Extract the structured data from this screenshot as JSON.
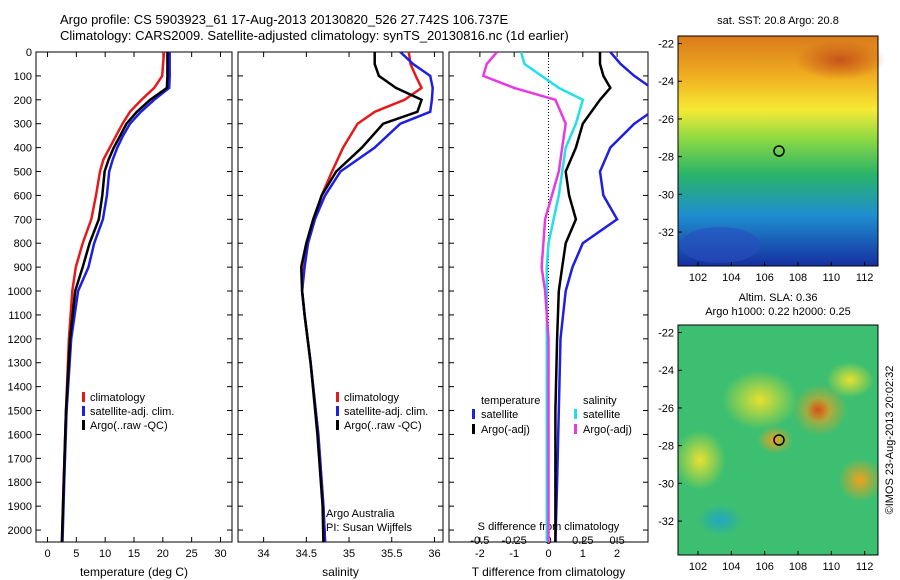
{
  "header": {
    "line1": "Argo profile: CS 5903923_61 17-Aug-2013 20130820_526 27.742S 106.737E",
    "line2": "Climatology: CARS2009. Satellite-adjusted climatology: synTS_20130816.nc (1d earlier)"
  },
  "colors": {
    "climatology": "#e41a1c",
    "satellite": "#1f1fe0",
    "argo": "#000000",
    "sat_sal": "#22e0e8",
    "argo_sal": "#e83ae0"
  },
  "depth_ticks": [
    "0",
    "100",
    "200",
    "300",
    "400",
    "500",
    "600",
    "700",
    "800",
    "900",
    "1000",
    "1100",
    "1200",
    "1300",
    "1400",
    "1500",
    "1600",
    "1700",
    "1800",
    "1900",
    "2000"
  ],
  "chart_data": [
    {
      "type": "line",
      "xlabel": "temperature (deg C)",
      "xticks": [
        "0",
        "5",
        "10",
        "15",
        "20",
        "25",
        "30"
      ],
      "xlim": [
        -2,
        32
      ],
      "ylim": [
        0,
        2050
      ],
      "legend": [
        "climatology",
        "satellite-adj. clim.",
        "Argo(..raw -QC)"
      ],
      "series": [
        {
          "name": "climatology",
          "depth": [
            0,
            100,
            150,
            200,
            250,
            300,
            350,
            400,
            450,
            500,
            600,
            700,
            800,
            900,
            1000,
            1200,
            1500,
            1800,
            2050
          ],
          "values": [
            20.2,
            19.9,
            18.5,
            16.3,
            14.3,
            13,
            11.9,
            10.8,
            9.7,
            9.1,
            8.4,
            7.6,
            6.1,
            4.9,
            4.3,
            3.7,
            3.2,
            2.8,
            2.5
          ]
        },
        {
          "name": "satellite-adj. clim.",
          "depth": [
            0,
            100,
            150,
            200,
            250,
            300,
            350,
            400,
            450,
            500,
            600,
            700,
            800,
            900,
            1000,
            1200,
            1500,
            1800,
            2050
          ],
          "values": [
            21.2,
            21.2,
            21.1,
            18.5,
            16.2,
            14.3,
            13.1,
            12.1,
            11.3,
            10.7,
            10.3,
            9.6,
            8.1,
            7.1,
            5.3,
            4.1,
            3.3,
            2.9,
            2.6
          ]
        },
        {
          "name": "Argo(..raw -QC)",
          "depth": [
            0,
            100,
            150,
            200,
            250,
            300,
            350,
            400,
            450,
            500,
            600,
            700,
            800,
            900,
            1000,
            1200,
            1500,
            1800,
            2050
          ],
          "values": [
            20.8,
            20.8,
            20.7,
            17.8,
            15.5,
            13.7,
            12.6,
            11.5,
            10.6,
            9.9,
            9.5,
            8.9,
            7.3,
            6.1,
            4.8,
            3.9,
            3.2,
            2.8,
            2.5
          ]
        }
      ]
    },
    {
      "type": "line",
      "xlabel": "salinity",
      "xticks": [
        "34",
        "34.5",
        "35",
        "35.5",
        "36"
      ],
      "xlim": [
        33.7,
        36.1
      ],
      "ylim": [
        0,
        2050
      ],
      "legend": [
        "climatology",
        "satellite-adj. clim.",
        "Argo(..raw -QC)"
      ],
      "annotation": [
        "Argo Australia",
        "PI: Susan Wijffels"
      ],
      "series": [
        {
          "name": "climatology",
          "depth": [
            0,
            50,
            100,
            150,
            200,
            250,
            300,
            400,
            500,
            600,
            700,
            800,
            900,
            1000,
            1100,
            1300,
            1600,
            1900,
            2050
          ],
          "values": [
            35.7,
            35.72,
            35.78,
            35.85,
            35.65,
            35.3,
            35.1,
            34.93,
            34.8,
            34.68,
            34.6,
            34.52,
            34.47,
            34.45,
            34.48,
            34.55,
            34.64,
            34.7,
            34.72
          ]
        },
        {
          "name": "satellite-adj. clim.",
          "depth": [
            0,
            50,
            100,
            150,
            200,
            250,
            300,
            400,
            500,
            600,
            700,
            800,
            900,
            1000,
            1100,
            1300,
            1600,
            1900,
            2050
          ],
          "values": [
            35.6,
            35.75,
            35.95,
            35.98,
            35.97,
            35.95,
            35.6,
            35.3,
            34.9,
            34.72,
            34.6,
            34.52,
            34.48,
            34.45,
            34.48,
            34.55,
            34.64,
            34.7,
            34.72
          ]
        },
        {
          "name": "Argo(..raw -QC)",
          "depth": [
            0,
            50,
            100,
            150,
            200,
            250,
            300,
            400,
            500,
            600,
            700,
            800,
            900,
            1000,
            1100,
            1300,
            1600,
            1900,
            2050
          ],
          "values": [
            35.3,
            35.3,
            35.35,
            35.55,
            35.85,
            35.8,
            35.4,
            35.15,
            34.85,
            34.68,
            34.58,
            34.5,
            34.44,
            34.45,
            34.48,
            34.55,
            34.63,
            34.69,
            34.7
          ]
        }
      ]
    },
    {
      "type": "line",
      "xlabel": "T difference from climatology",
      "xticks": [
        "-2",
        "-1",
        "0",
        "1",
        "2"
      ],
      "xlim": [
        -2.9,
        2.9
      ],
      "top_label": "S difference from climatology",
      "top_ticks": [
        "-0.5",
        "-0.25",
        "0",
        "0.25",
        "0.5"
      ],
      "ylim": [
        0,
        2050
      ],
      "legend_title_t": "temperature",
      "legend_title_s": "salinity",
      "legend": [
        "satellite",
        "Argo(-adj)",
        "satellite",
        "Argo(-adj)"
      ],
      "series": [
        {
          "name": "satellite",
          "depth": [
            0,
            50,
            100,
            150,
            200,
            300,
            400,
            500,
            600,
            700,
            800,
            900,
            1000,
            1200,
            1500,
            1800,
            2050
          ],
          "values": [
            1.8,
            2.1,
            2.5,
            3.0,
            3.5,
            2.5,
            1.8,
            1.5,
            1.6,
            2.0,
            1.0,
            0.7,
            0.5,
            0.35,
            0.3,
            0.25,
            0.2
          ]
        },
        {
          "name": "Argo(-adj)",
          "depth": [
            0,
            50,
            100,
            150,
            200,
            300,
            400,
            500,
            600,
            700,
            800,
            900,
            1000,
            1200,
            1500,
            1800,
            2050
          ],
          "values": [
            1.5,
            1.5,
            1.6,
            1.8,
            1.5,
            1.0,
            0.8,
            0.5,
            0.6,
            0.8,
            0.5,
            0.4,
            0.3,
            0.25,
            0.2,
            0.2,
            0.2
          ]
        },
        {
          "name": "satellite",
          "depth": [
            0,
            50,
            100,
            150,
            200,
            300,
            400,
            500,
            600,
            700,
            800,
            900,
            1000,
            1200,
            1500,
            1800,
            2050
          ],
          "values": [
            -0.8,
            -0.7,
            -0.2,
            0.3,
            1.0,
            0.8,
            0.5,
            0.4,
            0.3,
            0.15,
            0.0,
            -0.05,
            -0.05,
            -0.05,
            -0.05,
            -0.05,
            -0.05
          ]
        },
        {
          "name": "Argo(-adj)",
          "depth": [
            0,
            50,
            100,
            150,
            200,
            300,
            400,
            500,
            600,
            700,
            800,
            900,
            1000,
            1200,
            1500,
            1800,
            2050
          ],
          "values": [
            -1.5,
            -1.8,
            -1.9,
            -1.0,
            0.2,
            0.5,
            0.4,
            0.3,
            0.1,
            -0.1,
            -0.15,
            -0.2,
            -0.1,
            0.0,
            0.0,
            0.0,
            0.0
          ]
        }
      ]
    }
  ],
  "maps": {
    "top": {
      "title": "sat. SST: 20.8  Argo: 20.8",
      "yticks": [
        "-22",
        "-24",
        "-26",
        "-28",
        "-30",
        "-32"
      ],
      "xticks": [
        "102",
        "104",
        "106",
        "108",
        "110",
        "112"
      ]
    },
    "bottom": {
      "title1": "Altim. SLA: 0.36",
      "title2": "Argo h1000: 0.22  h2000: 0.25",
      "yticks": [
        "-22",
        "-24",
        "-26",
        "-28",
        "-30",
        "-32"
      ],
      "xticks": [
        "102",
        "104",
        "106",
        "108",
        "110",
        "112"
      ]
    },
    "credit": "©IMOS 23-Aug-2013 20:02:32"
  }
}
